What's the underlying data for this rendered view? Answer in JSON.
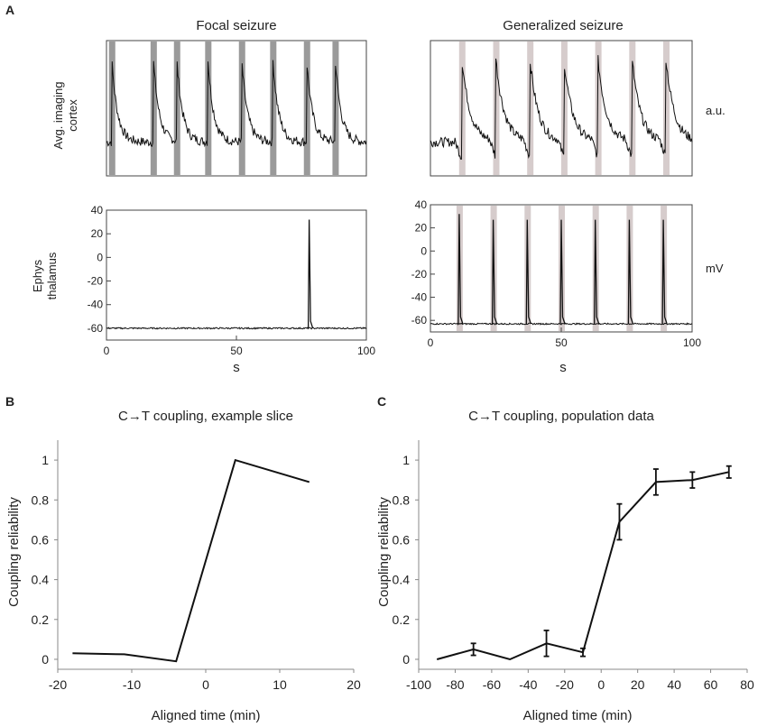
{
  "panel_labels": {
    "a": "A",
    "b": "B",
    "c": "C"
  },
  "panel_a": {
    "focal_title": "Focal seizure",
    "generalized_title": "Generalized seizure",
    "imaging_ylabel_line1": "Avg. imaging",
    "imaging_ylabel_line2": "cortex",
    "ephys_ylabel_line1": "Ephys",
    "ephys_ylabel_line2": "thalamus",
    "imaging_unit": "a.u.",
    "ephys_unit": "mV",
    "xlabel": "s"
  },
  "chart_data": [
    {
      "id": "focal_imaging",
      "type": "line",
      "title": "Focal seizure",
      "ylabel": "Avg. imaging cortex",
      "unit": "a.u.",
      "xlim": [
        0,
        100
      ],
      "ylim": [
        0,
        1
      ],
      "event_times_s": [
        2,
        18,
        27,
        39,
        52,
        64,
        77,
        88
      ]
    },
    {
      "id": "focal_ephys",
      "type": "line",
      "title": "",
      "ylabel": "Ephys thalamus",
      "xlabel": "s",
      "unit": "mV",
      "xlim": [
        0,
        100
      ],
      "ylim": [
        -70,
        40
      ],
      "x_ticks": [
        0,
        50,
        100
      ],
      "y_ticks": [
        40,
        20,
        0,
        -20,
        -40,
        -60
      ],
      "baseline_mV": -60,
      "spikes": [
        {
          "t": 78,
          "peak": 32
        }
      ]
    },
    {
      "id": "generalized_imaging",
      "type": "line",
      "title": "Generalized seizure",
      "ylabel": "",
      "unit": "a.u.",
      "xlim": [
        0,
        100
      ],
      "ylim": [
        0,
        1
      ],
      "event_times_s": [
        12,
        25,
        38,
        51,
        64,
        77,
        90
      ]
    },
    {
      "id": "generalized_ephys",
      "type": "line",
      "title": "",
      "xlabel": "s",
      "unit": "mV",
      "xlim": [
        0,
        100
      ],
      "ylim": [
        -70,
        40
      ],
      "x_ticks": [
        0,
        50,
        100
      ],
      "y_ticks": [
        40,
        20,
        0,
        -20,
        -40,
        -60
      ],
      "baseline_mV": -63,
      "spikes": [
        {
          "t": 11,
          "peak": 32
        },
        {
          "t": 24,
          "peak": 27
        },
        {
          "t": 37,
          "peak": 27
        },
        {
          "t": 50,
          "peak": 27
        },
        {
          "t": 63,
          "peak": 27
        },
        {
          "t": 76,
          "peak": 27
        },
        {
          "t": 89,
          "peak": 27
        }
      ]
    },
    {
      "id": "example_slice",
      "type": "line",
      "title": "C→T coupling, example slice",
      "xlabel": "Aligned time (min)",
      "ylabel": "Coupling reliability",
      "xlim": [
        -20,
        20
      ],
      "ylim": [
        -0.05,
        1.1
      ],
      "x_ticks": [
        -20,
        -10,
        0,
        10,
        20
      ],
      "y_ticks": [
        0,
        0.2,
        0.4,
        0.6,
        0.8,
        1
      ],
      "x": [
        -18,
        -11,
        -4,
        4,
        14
      ],
      "y": [
        0.03,
        0.025,
        -0.01,
        1.0,
        0.89
      ]
    },
    {
      "id": "population",
      "type": "line",
      "title": "C→T coupling, population data",
      "xlabel": "Aligned time (min)",
      "ylabel": "Coupling reliability",
      "xlim": [
        -100,
        80
      ],
      "ylim": [
        -0.05,
        1.1
      ],
      "x_ticks": [
        -100,
        -80,
        -60,
        -40,
        -20,
        0,
        20,
        40,
        60,
        80
      ],
      "y_ticks": [
        0,
        0.2,
        0.4,
        0.6,
        0.8,
        1
      ],
      "x": [
        -90,
        -70,
        -50,
        -30,
        -10,
        10,
        30,
        50,
        70
      ],
      "y": [
        0.0,
        0.05,
        0.0,
        0.08,
        0.035,
        0.69,
        0.89,
        0.9,
        0.94
      ],
      "error": [
        0,
        0.03,
        0,
        0.065,
        0.02,
        0.09,
        0.065,
        0.04,
        0.03
      ]
    }
  ]
}
